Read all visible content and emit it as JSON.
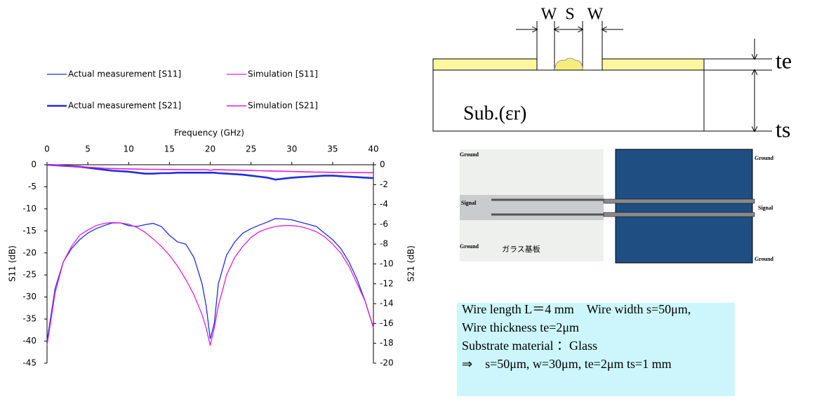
{
  "chart_data": {
    "type": "line",
    "x_label": "Frequency (GHz)",
    "y_label": "S11 (dB)",
    "y2_label": "S21 (dB)",
    "x": [
      0,
      1,
      2,
      3,
      4,
      5,
      6,
      7,
      8,
      9,
      10,
      11,
      12,
      13,
      14,
      15,
      16,
      17,
      18,
      19,
      19.5,
      20,
      20.5,
      21,
      22,
      23,
      24,
      25,
      26,
      27,
      28,
      29,
      30,
      31,
      32,
      33,
      34,
      35,
      36,
      37,
      38,
      39,
      40
    ],
    "xlim": [
      0,
      40
    ],
    "xticks": [
      0,
      5,
      10,
      15,
      20,
      25,
      30,
      35,
      40
    ],
    "ylim": [
      -45,
      0
    ],
    "yticks": [
      0,
      -5,
      -10,
      -15,
      -20,
      -25,
      -30,
      -35,
      -40,
      -45
    ],
    "y2lim": [
      -20,
      0
    ],
    "y2ticks": [
      0,
      -2,
      -4,
      -6,
      -8,
      -10,
      -12,
      -14,
      -16,
      -18,
      -20
    ],
    "series": [
      {
        "name": "Actual measurement [S11]",
        "color": "#1f2ee0",
        "linewidth": 1.3,
        "values": [
          -40,
          -28,
          -22,
          -19,
          -17,
          -15.5,
          -14.5,
          -13.8,
          -13.2,
          -13.2,
          -13.8,
          -14,
          -13.6,
          -13.3,
          -14,
          -16,
          -17.5,
          -18,
          -21,
          -27,
          -32,
          -39.5,
          -36,
          -27,
          -20.5,
          -17.5,
          -15.5,
          -14.5,
          -13.7,
          -13,
          -12.2,
          -12.3,
          -12.5,
          -13,
          -13.5,
          -14,
          -15.5,
          -17,
          -19,
          -22,
          -26,
          -31,
          -37
        ]
      },
      {
        "name": "Simulation [S11]",
        "color": "#e020d8",
        "linewidth": 1.3,
        "values": [
          -41,
          -29,
          -22,
          -18.5,
          -16,
          -14.8,
          -13.8,
          -13.3,
          -13.1,
          -13.2,
          -13.5,
          -14.2,
          -15.3,
          -16.8,
          -18.5,
          -20.5,
          -23,
          -26,
          -29.5,
          -34,
          -37,
          -41,
          -37,
          -32,
          -25,
          -21,
          -18.5,
          -16.5,
          -15.2,
          -14.5,
          -14,
          -13.8,
          -13.8,
          -14,
          -14.5,
          -15.2,
          -16.3,
          -18,
          -20,
          -23,
          -27,
          -31,
          -37
        ]
      },
      {
        "name": "Actual measurement [S21]",
        "color": "#1f2ee0",
        "linewidth": 2.6,
        "axis": "y2",
        "values": [
          0,
          -0.05,
          -0.1,
          -0.15,
          -0.2,
          -0.3,
          -0.4,
          -0.5,
          -0.6,
          -0.65,
          -0.7,
          -0.8,
          -0.9,
          -0.9,
          -0.85,
          -0.85,
          -0.8,
          -0.8,
          -0.8,
          -0.8,
          -0.8,
          -0.8,
          -0.8,
          -0.85,
          -0.9,
          -0.95,
          -1.0,
          -1.1,
          -1.2,
          -1.3,
          -1.5,
          -1.4,
          -1.3,
          -1.25,
          -1.2,
          -1.15,
          -1.1,
          -1.1,
          -1.15,
          -1.2,
          -1.25,
          -1.3,
          -1.35
        ]
      },
      {
        "name": "Simulation [S21]",
        "color": "#e020d8",
        "linewidth": 1.6,
        "axis": "y2",
        "values": [
          0,
          -0.05,
          -0.1,
          -0.15,
          -0.2,
          -0.25,
          -0.3,
          -0.35,
          -0.38,
          -0.4,
          -0.42,
          -0.44,
          -0.45,
          -0.46,
          -0.47,
          -0.48,
          -0.49,
          -0.5,
          -0.5,
          -0.5,
          -0.5,
          -0.55,
          -0.5,
          -0.5,
          -0.52,
          -0.54,
          -0.56,
          -0.58,
          -0.6,
          -0.62,
          -0.64,
          -0.66,
          -0.68,
          -0.7,
          -0.72,
          -0.74,
          -0.75,
          -0.76,
          -0.77,
          -0.78,
          -0.79,
          -0.8,
          -0.8
        ]
      }
    ]
  },
  "diagram": {
    "w_left": "W",
    "s": "S",
    "w_right": "W",
    "te": "te",
    "ts": "ts",
    "substrate": "Sub.(εr)"
  },
  "photo": {
    "ground_top_left": "Ground",
    "signal_left": "Signal",
    "ground_bottom_left": "Ground",
    "glass_substrate": "ガラス基板",
    "ground_top_right": "Ground",
    "signal_right": "Signal",
    "ground_bottom_right": "Ground"
  },
  "spec": {
    "lines": [
      "Wire length L＝4 mm　Wire width s=50μm,",
      "Wire thickness te=2μm",
      "Substrate material ：Glass",
      "⇒　s=50μm, w=30μm, te=2μm ts=1 mm"
    ]
  }
}
